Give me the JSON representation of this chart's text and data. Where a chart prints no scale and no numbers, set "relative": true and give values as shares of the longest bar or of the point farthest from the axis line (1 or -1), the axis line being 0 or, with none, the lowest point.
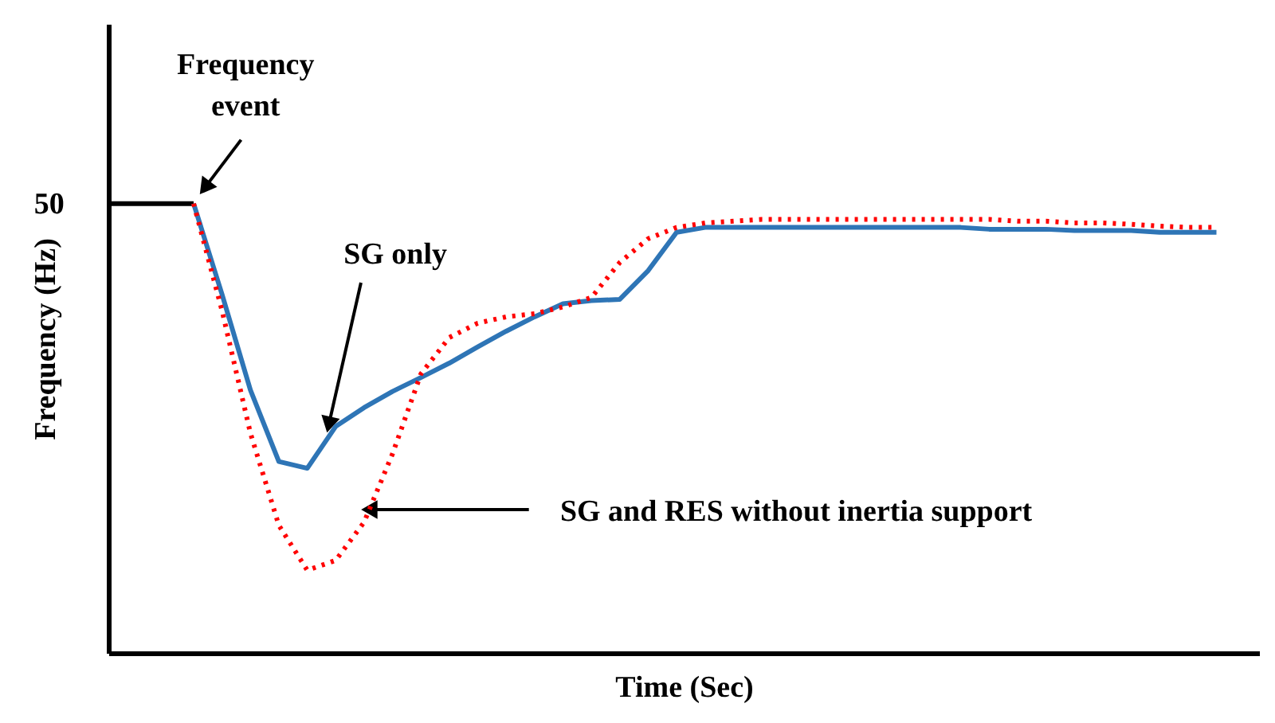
{
  "chart_data": {
    "type": "line",
    "relative": true,
    "xlabel": "Time (Sec)",
    "ylabel": "Frequency (Hz)",
    "grid": false,
    "marker": "none",
    "tick_labels": false,
    "categories": [
      null,
      null,
      null,
      null,
      null,
      null,
      null,
      null,
      null,
      null,
      null,
      null,
      null,
      null,
      null,
      null,
      null,
      null,
      null,
      null,
      null,
      null,
      null,
      null,
      null,
      null,
      null,
      null,
      null,
      null,
      null,
      null,
      null,
      null,
      null,
      null,
      null,
      null,
      null,
      null
    ],
    "series": [
      {
        "color": "#000000",
        "line_style": "solid",
        "values": [
          1.0,
          1.0,
          1.0,
          1.0,
          null,
          null,
          null,
          null,
          null,
          null,
          null,
          null,
          null,
          null,
          null,
          null,
          null,
          null,
          null,
          null,
          null,
          null,
          null,
          null,
          null,
          null,
          null,
          null,
          null,
          null,
          null,
          null,
          null,
          null,
          null,
          null,
          null,
          null,
          null,
          null
        ]
      },
      {
        "color": "#2e75b6",
        "line_style": "solid",
        "values": [
          null,
          null,
          null,
          1.0,
          0.798,
          0.585,
          0.426,
          0.411,
          0.504,
          0.546,
          0.582,
          0.613,
          0.645,
          0.681,
          0.716,
          0.748,
          0.777,
          0.784,
          0.787,
          0.851,
          0.936,
          0.947,
          0.947,
          0.947,
          0.947,
          0.947,
          0.947,
          0.947,
          0.947,
          0.947,
          0.947,
          0.943,
          0.943,
          0.943,
          0.94,
          0.94,
          0.94,
          0.936,
          0.936,
          0.936
        ]
      },
      {
        "color": "#ff0000",
        "line_style": "dotted",
        "values": [
          null,
          null,
          null,
          1.0,
          0.762,
          0.489,
          0.284,
          0.184,
          0.206,
          0.291,
          0.443,
          0.621,
          0.702,
          0.734,
          0.748,
          0.755,
          0.77,
          0.791,
          0.869,
          0.922,
          0.947,
          0.957,
          0.961,
          0.965,
          0.965,
          0.965,
          0.965,
          0.965,
          0.965,
          0.965,
          0.965,
          0.965,
          0.961,
          0.961,
          0.957,
          0.957,
          0.954,
          0.95,
          0.947,
          0.947
        ]
      }
    ],
    "annotations": [
      "50",
      "Frequency event",
      "SG only",
      "SG and RES without inertia support"
    ]
  }
}
